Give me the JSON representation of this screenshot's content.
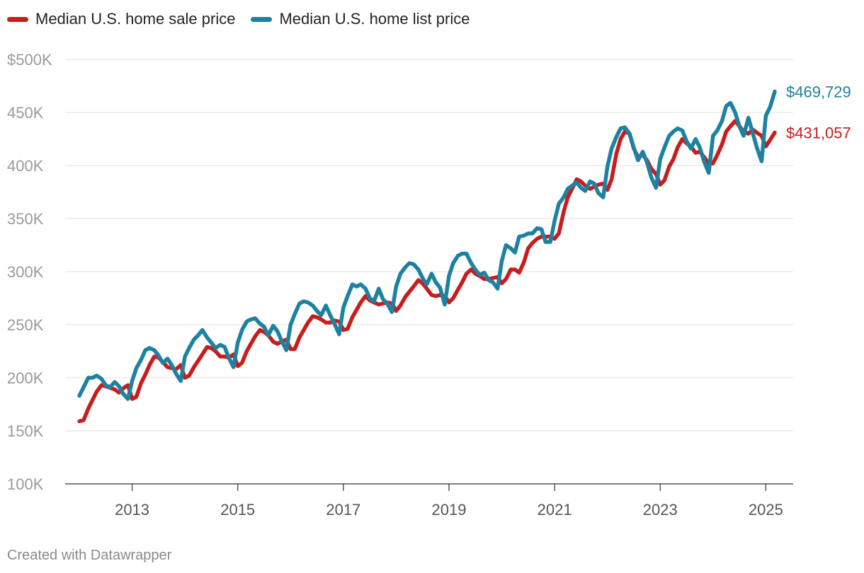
{
  "chart_data": {
    "type": "line",
    "title": "",
    "xlabel": "",
    "ylabel": "",
    "ylim": [
      100000,
      500000
    ],
    "y_ticks": [
      100000,
      150000,
      200000,
      250000,
      300000,
      350000,
      400000,
      450000,
      500000
    ],
    "y_tick_labels": [
      "100K",
      "150K",
      "200K",
      "250K",
      "300K",
      "350K",
      "400K",
      "450K",
      "$500K"
    ],
    "x_range": [
      2012.0,
      2025.25
    ],
    "x_ticks": [
      2013,
      2015,
      2017,
      2019,
      2021,
      2023,
      2025
    ],
    "x_tick_labels": [
      "2013",
      "2015",
      "2017",
      "2019",
      "2021",
      "2023",
      "2025"
    ],
    "grid": true,
    "legend_position": "top-left",
    "series": [
      {
        "name": "Median U.S. home sale price",
        "color": "#c71e1d",
        "end_label": "$431,057",
        "x": [
          2012.0,
          2012.08,
          2012.17,
          2012.25,
          2012.33,
          2012.42,
          2012.5,
          2012.67,
          2012.75,
          2012.83,
          2012.92,
          2013.0,
          2013.08,
          2013.17,
          2013.25,
          2013.33,
          2013.42,
          2013.5,
          2013.58,
          2013.67,
          2013.83,
          2013.92,
          2014.0,
          2014.08,
          2014.17,
          2014.25,
          2014.33,
          2014.42,
          2014.5,
          2014.58,
          2014.67,
          2014.75,
          2014.83,
          2014.92,
          2015.0,
          2015.08,
          2015.17,
          2015.25,
          2015.33,
          2015.42,
          2015.5,
          2015.58,
          2015.67,
          2015.75,
          2015.83,
          2015.92,
          2016.0,
          2016.08,
          2016.17,
          2016.25,
          2016.33,
          2016.42,
          2016.5,
          2016.58,
          2016.67,
          2016.75,
          2016.83,
          2016.92,
          2017.0,
          2017.08,
          2017.17,
          2017.25,
          2017.33,
          2017.42,
          2017.5,
          2017.58,
          2017.67,
          2017.75,
          2017.83,
          2017.92,
          2018.0,
          2018.08,
          2018.17,
          2018.25,
          2018.33,
          2018.42,
          2018.5,
          2018.58,
          2018.67,
          2018.75,
          2018.83,
          2018.92,
          2019.0,
          2019.08,
          2019.17,
          2019.25,
          2019.33,
          2019.42,
          2019.5,
          2019.58,
          2019.67,
          2019.75,
          2019.83,
          2019.92,
          2020.0,
          2020.08,
          2020.17,
          2020.25,
          2020.33,
          2020.42,
          2020.5,
          2020.58,
          2020.67,
          2020.75,
          2020.83,
          2020.92,
          2021.0,
          2021.08,
          2021.17,
          2021.25,
          2021.33,
          2021.42,
          2021.5,
          2021.58,
          2021.67,
          2021.75,
          2021.83,
          2021.92,
          2022.0,
          2022.08,
          2022.17,
          2022.25,
          2022.33,
          2022.42,
          2022.5,
          2022.58,
          2022.67,
          2022.75,
          2022.83,
          2022.92,
          2023.0,
          2023.08,
          2023.17,
          2023.25,
          2023.33,
          2023.42,
          2023.5,
          2023.58,
          2023.67,
          2023.75,
          2023.83,
          2023.92,
          2024.0,
          2024.08,
          2024.17,
          2024.25,
          2024.33,
          2024.42,
          2024.5,
          2024.58,
          2024.67,
          2024.75,
          2024.83,
          2024.92,
          2025.0,
          2025.08,
          2025.17
        ],
        "values": [
          159000,
          160000,
          171000,
          179000,
          187000,
          193000,
          192000,
          189000,
          186000,
          190000,
          193000,
          180000,
          182000,
          195000,
          203000,
          212000,
          220000,
          219000,
          215000,
          210000,
          208000,
          212000,
          200000,
          202000,
          210000,
          216000,
          222000,
          229000,
          228000,
          225000,
          220000,
          220000,
          219000,
          222000,
          211000,
          214000,
          225000,
          232000,
          239000,
          245000,
          243000,
          240000,
          234000,
          232000,
          234000,
          236000,
          227000,
          227000,
          238000,
          245000,
          252000,
          258000,
          257000,
          255000,
          252000,
          252000,
          254000,
          253000,
          245000,
          246000,
          257000,
          264000,
          271000,
          277000,
          273000,
          271000,
          269000,
          270000,
          271000,
          270000,
          263000,
          268000,
          276000,
          281000,
          286000,
          292000,
          289000,
          284000,
          278000,
          277000,
          278000,
          277000,
          271000,
          275000,
          283000,
          290000,
          298000,
          302000,
          298000,
          296000,
          293000,
          293000,
          294000,
          295000,
          289000,
          293000,
          302000,
          302000,
          299000,
          309000,
          322000,
          327000,
          331000,
          333000,
          333000,
          333000,
          331000,
          336000,
          356000,
          370000,
          378000,
          387000,
          385000,
          381000,
          378000,
          380000,
          382000,
          383000,
          377000,
          387000,
          411000,
          425000,
          432000,
          430000,
          416000,
          408000,
          410000,
          405000,
          397000,
          392000,
          382000,
          386000,
          399000,
          406000,
          417000,
          425000,
          421000,
          418000,
          412000,
          413000,
          408000,
          402000,
          402000,
          410000,
          420000,
          432000,
          437000,
          442000,
          437000,
          432000,
          430000,
          434000,
          431000,
          428000,
          418000,
          424000,
          431057
        ]
      },
      {
        "name": "Median U.S. home list price",
        "color": "#1d81a2",
        "end_label": "$469,729",
        "x": [
          2012.0,
          2012.08,
          2012.17,
          2012.25,
          2012.33,
          2012.42,
          2012.5,
          2012.58,
          2012.67,
          2012.75,
          2012.83,
          2012.92,
          2013.0,
          2013.08,
          2013.17,
          2013.25,
          2013.33,
          2013.42,
          2013.5,
          2013.58,
          2013.67,
          2013.75,
          2013.83,
          2013.92,
          2014.0,
          2014.08,
          2014.17,
          2014.25,
          2014.33,
          2014.42,
          2014.5,
          2014.58,
          2014.67,
          2014.75,
          2014.83,
          2014.92,
          2015.0,
          2015.08,
          2015.17,
          2015.25,
          2015.33,
          2015.42,
          2015.5,
          2015.58,
          2015.67,
          2015.75,
          2015.83,
          2015.92,
          2016.0,
          2016.08,
          2016.17,
          2016.25,
          2016.33,
          2016.42,
          2016.5,
          2016.58,
          2016.67,
          2016.75,
          2016.83,
          2016.92,
          2017.0,
          2017.08,
          2017.17,
          2017.25,
          2017.33,
          2017.42,
          2017.5,
          2017.58,
          2017.67,
          2017.75,
          2017.83,
          2017.92,
          2018.0,
          2018.08,
          2018.17,
          2018.25,
          2018.33,
          2018.42,
          2018.5,
          2018.58,
          2018.67,
          2018.75,
          2018.83,
          2018.92,
          2019.0,
          2019.08,
          2019.17,
          2019.25,
          2019.33,
          2019.42,
          2019.5,
          2019.58,
          2019.67,
          2019.75,
          2019.83,
          2019.92,
          2020.0,
          2020.08,
          2020.17,
          2020.25,
          2020.33,
          2020.42,
          2020.5,
          2020.58,
          2020.67,
          2020.75,
          2020.83,
          2020.92,
          2021.0,
          2021.08,
          2021.17,
          2021.25,
          2021.33,
          2021.42,
          2021.5,
          2021.58,
          2021.67,
          2021.75,
          2021.83,
          2021.92,
          2022.0,
          2022.08,
          2022.17,
          2022.25,
          2022.33,
          2022.42,
          2022.5,
          2022.58,
          2022.67,
          2022.75,
          2022.83,
          2022.92,
          2023.0,
          2023.08,
          2023.17,
          2023.25,
          2023.33,
          2023.42,
          2023.5,
          2023.58,
          2023.67,
          2023.75,
          2023.83,
          2023.92,
          2024.0,
          2024.08,
          2024.17,
          2024.25,
          2024.33,
          2024.42,
          2024.5,
          2024.58,
          2024.67,
          2024.75,
          2024.83,
          2024.92,
          2025.0,
          2025.08,
          2025.17
        ],
        "values": [
          183000,
          191000,
          200000,
          200000,
          202000,
          199000,
          193000,
          191000,
          196000,
          192000,
          185000,
          180000,
          197000,
          209000,
          217000,
          226000,
          228000,
          226000,
          221000,
          214000,
          218000,
          212000,
          204000,
          197000,
          220000,
          228000,
          236000,
          240000,
          245000,
          238000,
          233000,
          228000,
          231000,
          229000,
          219000,
          210000,
          233000,
          245000,
          253000,
          255000,
          256000,
          251000,
          248000,
          240000,
          249000,
          244000,
          235000,
          226000,
          250000,
          260000,
          270000,
          272000,
          271000,
          268000,
          263000,
          259000,
          268000,
          259000,
          251000,
          241000,
          266000,
          277000,
          288000,
          286000,
          288000,
          284000,
          275000,
          272000,
          284000,
          274000,
          270000,
          262000,
          286000,
          298000,
          304000,
          308000,
          307000,
          302000,
          294000,
          288000,
          298000,
          290000,
          285000,
          269000,
          296000,
          308000,
          315000,
          317000,
          317000,
          308000,
          302000,
          297000,
          299000,
          292000,
          290000,
          284000,
          310000,
          325000,
          322000,
          318000,
          333000,
          334000,
          336000,
          336000,
          341000,
          340000,
          328000,
          328000,
          348000,
          364000,
          370000,
          378000,
          381000,
          384000,
          379000,
          376000,
          385000,
          383000,
          374000,
          370000,
          399000,
          416000,
          427000,
          435000,
          436000,
          430000,
          417000,
          405000,
          413000,
          403000,
          389000,
          379000,
          406000,
          417000,
          428000,
          432000,
          435000,
          433000,
          423000,
          416000,
          425000,
          417000,
          404000,
          393000,
          428000,
          433000,
          442000,
          456000,
          459000,
          450000,
          437000,
          428000,
          445000,
          431000,
          417000,
          404000,
          447000,
          455000,
          469729
        ]
      }
    ]
  },
  "footer": {
    "credit": "Created with Datawrapper"
  }
}
